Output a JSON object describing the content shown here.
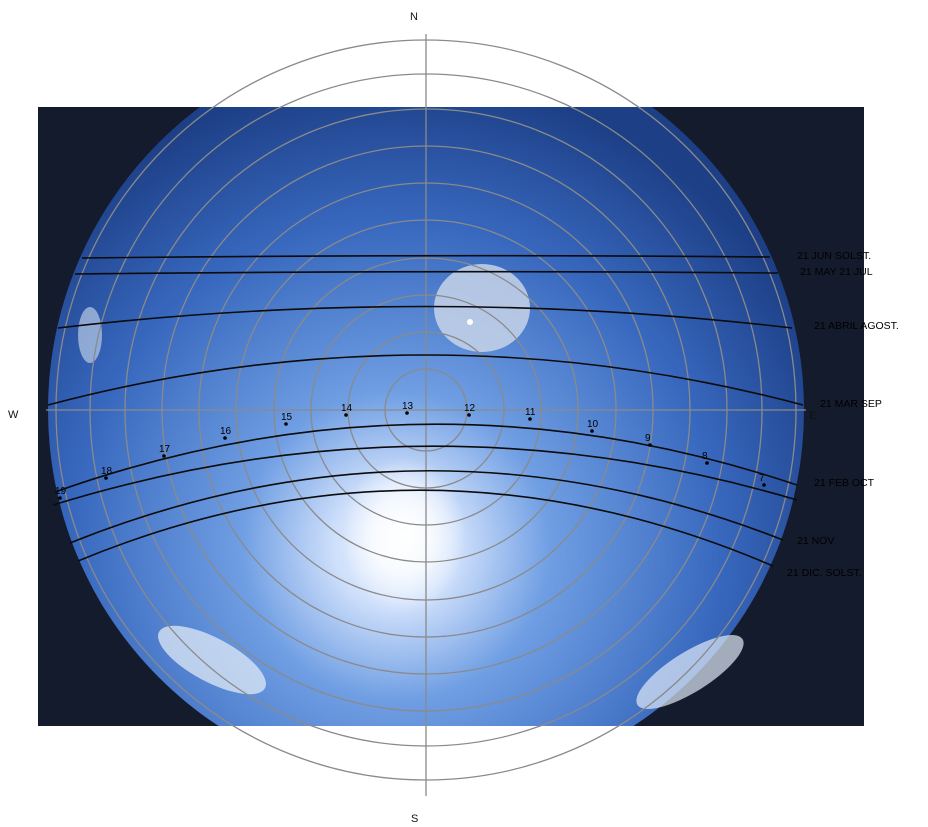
{
  "compass": {
    "north": "N",
    "south": "S",
    "west": "W",
    "east": "E"
  },
  "colors": {
    "sky_center": "#a9c6ee",
    "sky_mid": "#4a7fd1",
    "sky_edge": "#1d3f86",
    "ground": "#141b2c",
    "grid": "#8a8a8a",
    "path": "#0b0b0b",
    "sun": "#ffffff"
  },
  "sun_paths": [
    {
      "label": "21 JUN SOLST."
    },
    {
      "label": "21 MAY 21 JUL"
    },
    {
      "label": "21 ABRIL AGOST."
    },
    {
      "label": "21 MAR SEP"
    },
    {
      "label": "21 FEB OCT"
    },
    {
      "label": "21 NOV"
    },
    {
      "label": "21 DIC. SOLST."
    }
  ],
  "hour_marks": [
    "19",
    "18",
    "17",
    "16",
    "15",
    "14",
    "13",
    "12",
    "11",
    "10",
    "9",
    "8",
    "7"
  ]
}
